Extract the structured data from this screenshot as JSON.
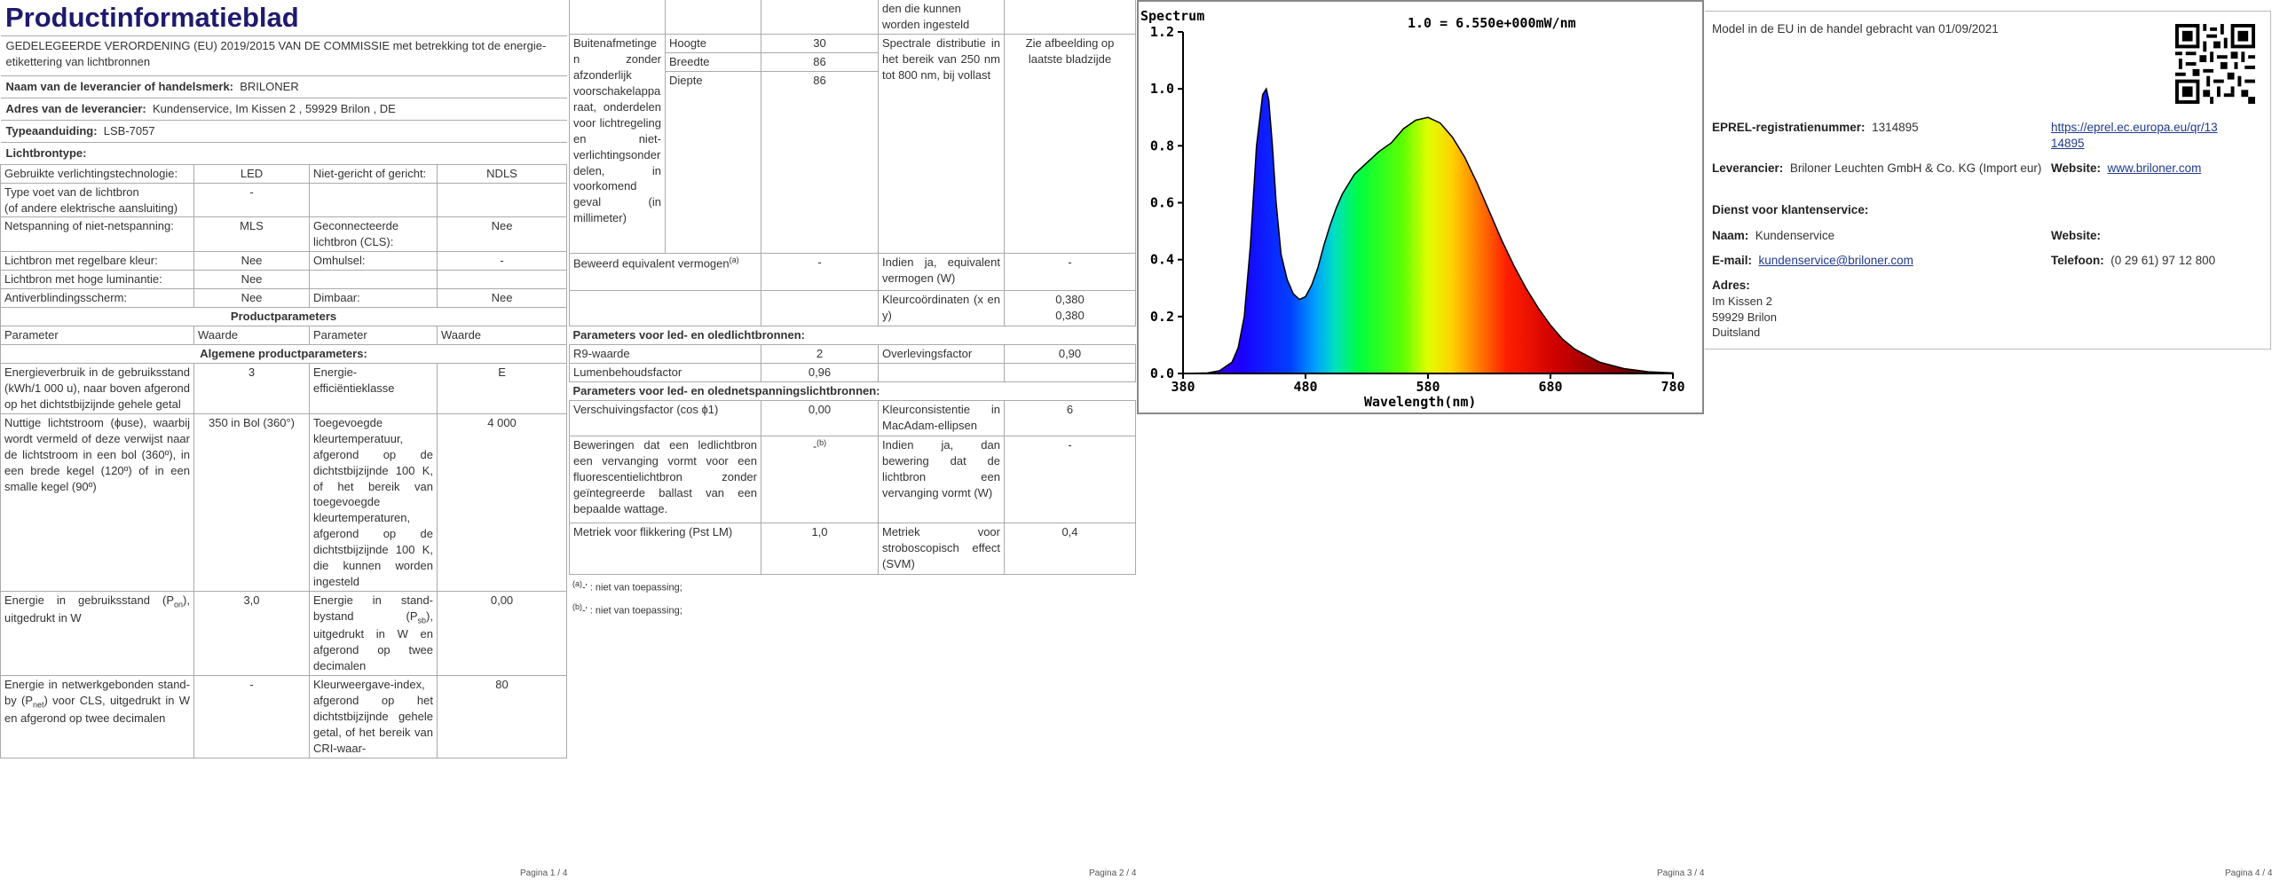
{
  "page1": {
    "title": "Productinformatieblad",
    "regulation": "GEDELEGEERDE VERORDENING (EU) 2019/2015 VAN DE COMMISSIE met betrekking tot de energie-etikettering van lichtbronnen",
    "supplier_label": "Naam van de leverancier of handelsmerk:",
    "supplier_value": "BRILONER",
    "address_label": "Adres van de leverancier:",
    "address_value": "Kundenservice, Im Kissen 2 , 59929 Brilon , DE",
    "type_label": "Typeaanduiding:",
    "type_value": "LSB-7057",
    "lightsource_heading": "Lichtbrontype:",
    "ls_rows": [
      {
        "p1": "Gebruikte verlichtingstechnologie:",
        "v1": "LED",
        "p2": "Niet-gericht of gericht:",
        "v2": "NDLS"
      },
      {
        "p1": "Type voet van de lichtbron",
        "p1b": "(of andere elektrische aansluiting)",
        "v1": "-",
        "p2": "",
        "v2": ""
      },
      {
        "p1": "Netspanning of niet-netspanning:",
        "v1": "MLS",
        "p2": "Geconnecteerde lichtbron (CLS):",
        "v2": "Nee"
      },
      {
        "p1": "Lichtbron met regelbare kleur:",
        "v1": "Nee",
        "p2": "Omhulsel:",
        "v2": "-"
      },
      {
        "p1": "Lichtbron met hoge luminantie:",
        "v1": "Nee",
        "p2": "",
        "v2": ""
      },
      {
        "p1": "Antiverblindingsscherm:",
        "v1": "Nee",
        "p2": "Dimbaar:",
        "v2": "Nee"
      }
    ],
    "product_params_heading": "Productparameters",
    "col_headers": [
      "Parameter",
      "Waarde",
      "Parameter",
      "Waarde"
    ],
    "general_heading": "Algemene productparameters:",
    "gen_rows": [
      {
        "p1": "Energieverbruik in de gebruiksstand (kWh/1 000 u), naar boven afgerond op het dichtstbijzijnde gehele getal",
        "v1": "3",
        "p2": "Energie-efficiëntieklasse",
        "v2": "E"
      },
      {
        "p1": "Nuttige lichtstroom (ϕuse), waarbij wordt vermeld of deze verwijst naar de lichtstroom in een bol (360º), in een brede kegel (120º) of in een smalle kegel (90º)",
        "v1": "350 in Bol (360°)",
        "p2": "Toegevoegde kleurtemperatuur, afgerond op de dichtstbijzijnde 100 K, of het bereik van toegevoegde kleurtemperaturen, afgerond op de dichtstbijzijnde 100 K, die kunnen worden ingesteld",
        "v2": "4 000"
      },
      {
        "p1a": "Energie in gebruiksstand (P",
        "p1sub": "on",
        "p1c": "), uitgedrukt in W",
        "v1": "3,0",
        "p2a": "Energie in stand-bystand (P",
        "p2sub": "sb",
        "p2c": "), uitgedrukt in W en afgerond op twee decimalen",
        "v2": "0,00"
      },
      {
        "p1a": "Energie in netwerkgebonden stand-by (P",
        "p1sub": "net",
        "p1c": ") voor CLS, uitgedrukt in W en afgerond op twee decimalen",
        "v1": "-",
        "p2": "Kleurweergave-index, afgerond op het dichtstbijzijnde gehele getal, of het bereik van CRI-waar-",
        "v2": "80"
      }
    ],
    "footer": "Pagina 1 / 4"
  },
  "page2": {
    "top_text": "den die kunnen worden ingesteld",
    "outer_label": "Buitenafmetingen zonder afzonderlijk voorschakelapparaat, onderdelen voor lichtregeling en niet-verlichtingsonderdelen, in voorkomend geval (in millimeter)",
    "dims": [
      {
        "name": "Hoogte",
        "value": "30"
      },
      {
        "name": "Breedte",
        "value": "86"
      },
      {
        "name": "Diepte",
        "value": "86"
      }
    ],
    "spectral_label": "Spectrale distributie in het bereik van 250 nm tot 800 nm, bij vollast",
    "spectral_value": "Zie afbeelding op laatste bladzijde",
    "equiv_label": "Beweerd equivalent vermogen",
    "equiv_sup": "(a)",
    "equiv_value": "-",
    "equiv_q": "Indien ja, equivalent vermogen (W)",
    "equiv_q_value": "-",
    "chroma_label": "Kleurcoördinaten (x en y)",
    "chroma_x": "0,380",
    "chroma_y": "0,380",
    "led_heading": "Parameters voor led- en oledlichtbronnen:",
    "r9_label": "R9-waarde",
    "r9_value": "2",
    "survival_label": "Overlevingsfactor",
    "survival_value": "0,90",
    "lumen_label": "Lumenbehoudsfactor",
    "lumen_value": "0,96",
    "mains_heading": "Parameters voor led- en olednetspanningslichtbronnen:",
    "shift_label": "Verschuivingsfactor (cos ϕ1)",
    "shift_value": "0,00",
    "macadam_label": "Kleurconsistentie in MacAdam-ellipsen",
    "macadam_value": "6",
    "claims_label": "Beweringen dat een ledlichtbron een vervanging vormt voor een fluorescentielichtbron zonder geïntegreerde ballast van een bepaalde wattage.",
    "claims_value": "-",
    "claims_sup": "(b)",
    "claims_q": "Indien ja, dan bewering dat de lichtbron een vervanging vormt (W)",
    "claims_q_value": "-",
    "flicker_label": "Metriek voor flikkering (Pst LM)",
    "flicker_value": "1,0",
    "strobo_label": "Metriek voor stroboscopisch effect (SVM)",
    "strobo_value": "0,4",
    "note_a_sup": "(a)",
    "note_a": "-' : niet van toepassing;",
    "note_b_sup": "(b)",
    "note_b": "-' : niet van toepassing;",
    "footer": "Pagina 2 / 4"
  },
  "page3": {
    "footer": "Pagina 3 / 4",
    "chart_data": {
      "type": "area",
      "title": "Spectrum",
      "annotation": "1.0 = 6.550e+000mW/nm",
      "xlabel": "Wavelength(nm)",
      "ylabel": "",
      "xlim": [
        380,
        780
      ],
      "ylim": [
        0,
        1.2
      ],
      "xticks": [
        "380",
        "480",
        "580",
        "680",
        "780"
      ],
      "yticks": [
        "0.0",
        "0.2",
        "0.4",
        "0.6",
        "0.8",
        "1.0",
        "1.2"
      ],
      "grid": false,
      "series": [
        {
          "x": [
            380,
            400,
            410,
            420,
            425,
            430,
            435,
            440,
            445,
            448,
            450,
            453,
            456,
            460,
            465,
            470,
            475,
            480,
            485,
            490,
            495,
            500,
            505,
            510,
            520,
            530,
            540,
            550,
            560,
            570,
            580,
            590,
            600,
            610,
            620,
            630,
            640,
            650,
            660,
            670,
            680,
            690,
            700,
            720,
            740,
            760,
            780
          ],
          "y": [
            0,
            0.002,
            0.01,
            0.04,
            0.09,
            0.2,
            0.45,
            0.8,
            0.98,
            1.0,
            0.96,
            0.8,
            0.6,
            0.42,
            0.33,
            0.28,
            0.26,
            0.27,
            0.31,
            0.37,
            0.45,
            0.52,
            0.58,
            0.63,
            0.7,
            0.74,
            0.78,
            0.81,
            0.86,
            0.89,
            0.9,
            0.88,
            0.83,
            0.76,
            0.67,
            0.57,
            0.47,
            0.38,
            0.3,
            0.23,
            0.17,
            0.12,
            0.085,
            0.04,
            0.017,
            0.006,
            0.002
          ]
        }
      ]
    }
  },
  "page4": {
    "placed": "Model in de EU in de handel gebracht van 01/09/2021",
    "eprel_label": "EPREL-registratienummer:",
    "eprel_value": "1314895",
    "eprel_link_1": "https://eprel.ec.europa.eu/qr/13",
    "eprel_link_2": "14895",
    "leverancier_label": "Leverancier:",
    "leverancier_value": "Briloner Leuchten GmbH & Co. KG  (Import eur)",
    "website_label": "Website:",
    "website_value": "www.briloner.com",
    "service_heading": "Dienst voor klantenservice:",
    "naam_label": "Naam:",
    "naam_value": "Kundenservice",
    "website2_label": "Website:",
    "email_label": "E-mail:",
    "email_value": "kundenservice@briloner.com",
    "phone_label": "Telefoon:",
    "phone_value": "(0 29 61) 97 12 800",
    "adres_label": "Adres:",
    "adres_lines": [
      "Im Kissen 2",
      "59929 Brilon",
      "Duitsland"
    ],
    "footer": "Pagina 4 / 4"
  }
}
